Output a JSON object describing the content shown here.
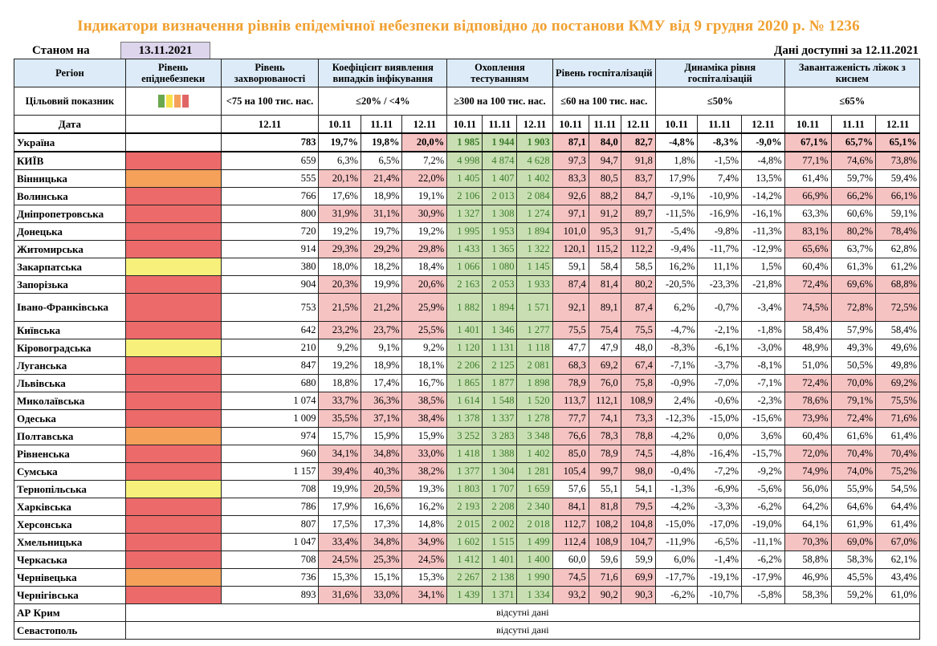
{
  "title": "Індикатори визначення рівнів епідемічної небезпеки відповідно до постанови КМУ від 9 грудня 2020 р. № 1236",
  "status_label": "Станом на",
  "status_date": "13.11.2021",
  "data_available": "Дані доступні за  12.11.2021",
  "headers": {
    "region": "Регіон",
    "level": "Рівень епіднебезпеки",
    "incidence": "Рівень захворюваності",
    "detection": "Коефіцієнт виявлення випадків інфікування",
    "testing": "Охоплення тестуванням",
    "hosp": "Рівень госпіталізацій",
    "dyn": "Динаміка рівня госпіталізацій",
    "beds": "Завантаженість ліжок з киснем"
  },
  "targets": {
    "label": "Цільовий показник",
    "incidence": "<75 на 100 тис. нас.",
    "detection": "≤20% / <4%",
    "testing": "≥300 на 100 тис. нас.",
    "hosp": "≤60 на 100 тис. нас.",
    "dyn": "≤50%",
    "beds": "≤65%",
    "swatches": [
      "#6aa84f",
      "#f7e14a",
      "#f5a15a",
      "#e06666"
    ]
  },
  "date_row": {
    "label": "Дата",
    "incidence": "12.11",
    "d1": "10.11",
    "d2": "11.11",
    "d3": "12.11"
  },
  "rows": [
    {
      "region": "Україна",
      "level": "",
      "inc": "783",
      "det": [
        "19,7%",
        "19,8%",
        "20,0%"
      ],
      "test": [
        "1 985",
        "1 944",
        "1 903"
      ],
      "hosp": [
        "87,1",
        "84,0",
        "82,7"
      ],
      "dyn": [
        "-4,8%",
        "-8,3%",
        "-9,0%"
      ],
      "beds": [
        "67,1%",
        "65,7%",
        "65,1%"
      ],
      "detR": [
        0,
        0,
        1
      ],
      "hospR": [
        1,
        1,
        1
      ],
      "bedsR": [
        1,
        1,
        1
      ]
    },
    {
      "region": "КИЇВ",
      "level": "red",
      "inc": "659",
      "det": [
        "6,3%",
        "6,5%",
        "7,2%"
      ],
      "test": [
        "4 998",
        "4 874",
        "4 628"
      ],
      "hosp": [
        "97,3",
        "94,7",
        "91,8"
      ],
      "dyn": [
        "1,8%",
        "-1,5%",
        "-4,8%"
      ],
      "beds": [
        "77,1%",
        "74,6%",
        "73,8%"
      ],
      "detR": [
        0,
        0,
        0
      ],
      "hospR": [
        1,
        1,
        1
      ],
      "bedsR": [
        1,
        1,
        1
      ]
    },
    {
      "region": "Вінницька",
      "level": "orange",
      "inc": "555",
      "det": [
        "20,1%",
        "21,4%",
        "22,0%"
      ],
      "test": [
        "1 405",
        "1 407",
        "1 402"
      ],
      "hosp": [
        "83,3",
        "80,5",
        "83,7"
      ],
      "dyn": [
        "17,9%",
        "7,4%",
        "13,5%"
      ],
      "beds": [
        "61,4%",
        "59,7%",
        "59,4%"
      ],
      "detR": [
        1,
        1,
        1
      ],
      "hospR": [
        1,
        1,
        1
      ],
      "bedsR": [
        0,
        0,
        0
      ]
    },
    {
      "region": "Волинська",
      "level": "red",
      "inc": "766",
      "det": [
        "17,6%",
        "18,9%",
        "19,1%"
      ],
      "test": [
        "2 106",
        "2 013",
        "2 084"
      ],
      "hosp": [
        "92,6",
        "88,2",
        "84,7"
      ],
      "dyn": [
        "-9,1%",
        "-10,9%",
        "-14,2%"
      ],
      "beds": [
        "66,9%",
        "66,2%",
        "66,1%"
      ],
      "detR": [
        0,
        0,
        0
      ],
      "hospR": [
        1,
        1,
        1
      ],
      "bedsR": [
        1,
        1,
        1
      ]
    },
    {
      "region": "Дніпропетровська",
      "level": "red",
      "inc": "800",
      "det": [
        "31,9%",
        "31,1%",
        "30,9%"
      ],
      "test": [
        "1 327",
        "1 308",
        "1 274"
      ],
      "hosp": [
        "97,1",
        "91,2",
        "89,7"
      ],
      "dyn": [
        "-11,5%",
        "-16,9%",
        "-16,1%"
      ],
      "beds": [
        "63,3%",
        "60,6%",
        "59,1%"
      ],
      "detR": [
        1,
        1,
        1
      ],
      "hospR": [
        1,
        1,
        1
      ],
      "bedsR": [
        0,
        0,
        0
      ]
    },
    {
      "region": "Донецька",
      "level": "red",
      "inc": "720",
      "det": [
        "19,2%",
        "19,7%",
        "19,2%"
      ],
      "test": [
        "1 995",
        "1 953",
        "1 894"
      ],
      "hosp": [
        "101,0",
        "95,3",
        "91,7"
      ],
      "dyn": [
        "-5,4%",
        "-9,8%",
        "-11,3%"
      ],
      "beds": [
        "83,1%",
        "80,2%",
        "78,4%"
      ],
      "detR": [
        0,
        0,
        0
      ],
      "hospR": [
        1,
        1,
        1
      ],
      "bedsR": [
        1,
        1,
        1
      ]
    },
    {
      "region": "Житомирська",
      "level": "red",
      "inc": "914",
      "det": [
        "29,3%",
        "29,2%",
        "29,8%"
      ],
      "test": [
        "1 433",
        "1 365",
        "1 322"
      ],
      "hosp": [
        "120,1",
        "115,2",
        "112,2"
      ],
      "dyn": [
        "-9,4%",
        "-11,7%",
        "-12,9%"
      ],
      "beds": [
        "65,6%",
        "63,7%",
        "62,8%"
      ],
      "detR": [
        1,
        1,
        1
      ],
      "hospR": [
        1,
        1,
        1
      ],
      "bedsR": [
        1,
        0,
        0
      ]
    },
    {
      "region": "Закарпатська",
      "level": "yellow",
      "inc": "380",
      "det": [
        "18,0%",
        "18,2%",
        "18,4%"
      ],
      "test": [
        "1 066",
        "1 080",
        "1 145"
      ],
      "hosp": [
        "59,1",
        "58,4",
        "58,5"
      ],
      "dyn": [
        "16,2%",
        "11,1%",
        "1,5%"
      ],
      "beds": [
        "60,4%",
        "61,3%",
        "61,2%"
      ],
      "detR": [
        0,
        0,
        0
      ],
      "hospR": [
        0,
        0,
        0
      ],
      "bedsR": [
        0,
        0,
        0
      ]
    },
    {
      "region": "Запорізька",
      "level": "red",
      "inc": "904",
      "det": [
        "20,3%",
        "19,9%",
        "20,6%"
      ],
      "test": [
        "2 163",
        "2 053",
        "1 933"
      ],
      "hosp": [
        "87,4",
        "81,4",
        "80,2"
      ],
      "dyn": [
        "-20,5%",
        "-23,3%",
        "-21,8%"
      ],
      "beds": [
        "72,4%",
        "69,6%",
        "68,8%"
      ],
      "detR": [
        1,
        0,
        1
      ],
      "hospR": [
        1,
        1,
        1
      ],
      "bedsR": [
        1,
        1,
        1
      ]
    },
    {
      "region": "Івано-Франківська",
      "level": "red",
      "inc": "753",
      "det": [
        "21,5%",
        "21,2%",
        "25,9%"
      ],
      "test": [
        "1 882",
        "1 894",
        "1 571"
      ],
      "hosp": [
        "92,1",
        "89,1",
        "87,4"
      ],
      "dyn": [
        "6,2%",
        "-0,7%",
        "-3,4%"
      ],
      "beds": [
        "74,5%",
        "72,8%",
        "72,5%"
      ],
      "detR": [
        1,
        1,
        1
      ],
      "hospR": [
        1,
        1,
        1
      ],
      "bedsR": [
        1,
        1,
        1
      ],
      "tall": true
    },
    {
      "region": "Київська",
      "level": "red",
      "inc": "642",
      "det": [
        "23,2%",
        "23,7%",
        "25,5%"
      ],
      "test": [
        "1 401",
        "1 346",
        "1 277"
      ],
      "hosp": [
        "75,5",
        "75,4",
        "75,5"
      ],
      "dyn": [
        "-4,7%",
        "-2,1%",
        "-1,8%"
      ],
      "beds": [
        "58,4%",
        "57,9%",
        "58,4%"
      ],
      "detR": [
        1,
        1,
        1
      ],
      "hospR": [
        1,
        1,
        1
      ],
      "bedsR": [
        0,
        0,
        0
      ]
    },
    {
      "region": "Кіровоградська",
      "level": "yellow",
      "inc": "210",
      "det": [
        "9,2%",
        "9,1%",
        "9,2%"
      ],
      "test": [
        "1 120",
        "1 131",
        "1 118"
      ],
      "hosp": [
        "47,7",
        "47,9",
        "48,0"
      ],
      "dyn": [
        "-8,3%",
        "-6,1%",
        "-3,0%"
      ],
      "beds": [
        "48,9%",
        "49,3%",
        "49,6%"
      ],
      "detR": [
        0,
        0,
        0
      ],
      "hospR": [
        0,
        0,
        0
      ],
      "bedsR": [
        0,
        0,
        0
      ]
    },
    {
      "region": "Луганська",
      "level": "red",
      "inc": "847",
      "det": [
        "19,2%",
        "18,9%",
        "18,1%"
      ],
      "test": [
        "2 206",
        "2 125",
        "2 081"
      ],
      "hosp": [
        "68,3",
        "69,2",
        "67,4"
      ],
      "dyn": [
        "-7,1%",
        "-3,7%",
        "-8,1%"
      ],
      "beds": [
        "51,0%",
        "50,5%",
        "49,8%"
      ],
      "detR": [
        0,
        0,
        0
      ],
      "hospR": [
        1,
        1,
        1
      ],
      "bedsR": [
        0,
        0,
        0
      ]
    },
    {
      "region": "Львівська",
      "level": "red",
      "inc": "680",
      "det": [
        "18,8%",
        "17,4%",
        "16,7%"
      ],
      "test": [
        "1 865",
        "1 877",
        "1 898"
      ],
      "hosp": [
        "78,9",
        "76,0",
        "75,8"
      ],
      "dyn": [
        "-0,9%",
        "-7,0%",
        "-7,1%"
      ],
      "beds": [
        "72,4%",
        "70,0%",
        "69,2%"
      ],
      "detR": [
        0,
        0,
        0
      ],
      "hospR": [
        1,
        1,
        1
      ],
      "bedsR": [
        1,
        1,
        1
      ]
    },
    {
      "region": "Миколаївська",
      "level": "red",
      "inc": "1 074",
      "det": [
        "33,7%",
        "36,3%",
        "38,5%"
      ],
      "test": [
        "1 614",
        "1 548",
        "1 520"
      ],
      "hosp": [
        "113,7",
        "112,1",
        "108,9"
      ],
      "dyn": [
        "2,4%",
        "-0,6%",
        "-2,3%"
      ],
      "beds": [
        "78,6%",
        "79,1%",
        "75,5%"
      ],
      "detR": [
        1,
        1,
        1
      ],
      "hospR": [
        1,
        1,
        1
      ],
      "bedsR": [
        1,
        1,
        1
      ]
    },
    {
      "region": "Одеська",
      "level": "red",
      "inc": "1 009",
      "det": [
        "35,5%",
        "37,1%",
        "38,4%"
      ],
      "test": [
        "1 378",
        "1 337",
        "1 278"
      ],
      "hosp": [
        "77,7",
        "74,1",
        "73,3"
      ],
      "dyn": [
        "-12,3%",
        "-15,0%",
        "-15,6%"
      ],
      "beds": [
        "73,9%",
        "72,4%",
        "71,6%"
      ],
      "detR": [
        1,
        1,
        1
      ],
      "hospR": [
        1,
        1,
        1
      ],
      "bedsR": [
        1,
        1,
        1
      ]
    },
    {
      "region": "Полтавська",
      "level": "orange",
      "inc": "974",
      "det": [
        "15,7%",
        "15,9%",
        "15,9%"
      ],
      "test": [
        "3 252",
        "3 283",
        "3 348"
      ],
      "hosp": [
        "76,6",
        "78,3",
        "78,8"
      ],
      "dyn": [
        "-4,2%",
        "0,0%",
        "3,6%"
      ],
      "beds": [
        "60,4%",
        "61,6%",
        "61,4%"
      ],
      "detR": [
        0,
        0,
        0
      ],
      "hospR": [
        1,
        1,
        1
      ],
      "bedsR": [
        0,
        0,
        0
      ]
    },
    {
      "region": "Рівненська",
      "level": "red",
      "inc": "960",
      "det": [
        "34,1%",
        "34,8%",
        "33,0%"
      ],
      "test": [
        "1 418",
        "1 388",
        "1 402"
      ],
      "hosp": [
        "85,0",
        "78,9",
        "74,5"
      ],
      "dyn": [
        "-4,8%",
        "-16,4%",
        "-15,7%"
      ],
      "beds": [
        "72,0%",
        "70,4%",
        "70,4%"
      ],
      "detR": [
        1,
        1,
        1
      ],
      "hospR": [
        1,
        1,
        1
      ],
      "bedsR": [
        1,
        1,
        1
      ]
    },
    {
      "region": "Сумська",
      "level": "red",
      "inc": "1 157",
      "det": [
        "39,4%",
        "40,3%",
        "38,2%"
      ],
      "test": [
        "1 377",
        "1 304",
        "1 281"
      ],
      "hosp": [
        "105,4",
        "99,7",
        "98,0"
      ],
      "dyn": [
        "-0,4%",
        "-7,2%",
        "-9,2%"
      ],
      "beds": [
        "74,9%",
        "74,0%",
        "75,2%"
      ],
      "detR": [
        1,
        1,
        1
      ],
      "hospR": [
        1,
        1,
        1
      ],
      "bedsR": [
        1,
        1,
        1
      ]
    },
    {
      "region": "Тернопільська",
      "level": "yellow",
      "inc": "708",
      "det": [
        "19,9%",
        "20,5%",
        "19,3%"
      ],
      "test": [
        "1 803",
        "1 707",
        "1 659"
      ],
      "hosp": [
        "57,6",
        "55,1",
        "54,1"
      ],
      "dyn": [
        "-1,3%",
        "-6,9%",
        "-5,6%"
      ],
      "beds": [
        "56,0%",
        "55,9%",
        "54,5%"
      ],
      "detR": [
        0,
        1,
        0
      ],
      "hospR": [
        0,
        0,
        0
      ],
      "bedsR": [
        0,
        0,
        0
      ]
    },
    {
      "region": "Харківська",
      "level": "red",
      "inc": "786",
      "det": [
        "17,9%",
        "16,6%",
        "16,2%"
      ],
      "test": [
        "2 193",
        "2 208",
        "2 340"
      ],
      "hosp": [
        "84,1",
        "81,8",
        "79,5"
      ],
      "dyn": [
        "-4,2%",
        "-3,3%",
        "-6,2%"
      ],
      "beds": [
        "64,2%",
        "64,6%",
        "64,4%"
      ],
      "detR": [
        0,
        0,
        0
      ],
      "hospR": [
        1,
        1,
        1
      ],
      "bedsR": [
        0,
        0,
        0
      ]
    },
    {
      "region": "Херсонська",
      "level": "red",
      "inc": "807",
      "det": [
        "17,5%",
        "17,3%",
        "14,8%"
      ],
      "test": [
        "2 015",
        "2 002",
        "2 018"
      ],
      "hosp": [
        "112,7",
        "108,2",
        "104,8"
      ],
      "dyn": [
        "-15,0%",
        "-17,0%",
        "-19,0%"
      ],
      "beds": [
        "64,1%",
        "61,9%",
        "61,4%"
      ],
      "detR": [
        0,
        0,
        0
      ],
      "hospR": [
        1,
        1,
        1
      ],
      "bedsR": [
        0,
        0,
        0
      ]
    },
    {
      "region": "Хмельницька",
      "level": "red",
      "inc": "1 047",
      "det": [
        "33,4%",
        "34,8%",
        "34,9%"
      ],
      "test": [
        "1 602",
        "1 515",
        "1 499"
      ],
      "hosp": [
        "112,4",
        "108,9",
        "104,7"
      ],
      "dyn": [
        "-11,9%",
        "-6,5%",
        "-11,1%"
      ],
      "beds": [
        "70,3%",
        "69,0%",
        "67,0%"
      ],
      "detR": [
        1,
        1,
        1
      ],
      "hospR": [
        1,
        1,
        1
      ],
      "bedsR": [
        1,
        1,
        1
      ]
    },
    {
      "region": "Черкаська",
      "level": "red",
      "inc": "708",
      "det": [
        "24,5%",
        "25,3%",
        "24,5%"
      ],
      "test": [
        "1 412",
        "1 401",
        "1 400"
      ],
      "hosp": [
        "60,0",
        "59,6",
        "59,9"
      ],
      "dyn": [
        "6,0%",
        "-1,4%",
        "-6,2%"
      ],
      "beds": [
        "58,8%",
        "58,3%",
        "62,1%"
      ],
      "detR": [
        1,
        1,
        1
      ],
      "hospR": [
        0,
        0,
        0
      ],
      "bedsR": [
        0,
        0,
        0
      ]
    },
    {
      "region": "Чернівецька",
      "level": "orange",
      "inc": "736",
      "det": [
        "15,3%",
        "15,1%",
        "15,3%"
      ],
      "test": [
        "2 267",
        "2 138",
        "1 990"
      ],
      "hosp": [
        "74,5",
        "71,6",
        "69,9"
      ],
      "dyn": [
        "-17,7%",
        "-19,1%",
        "-17,9%"
      ],
      "beds": [
        "46,9%",
        "45,5%",
        "43,4%"
      ],
      "detR": [
        0,
        0,
        0
      ],
      "hospR": [
        1,
        1,
        1
      ],
      "bedsR": [
        0,
        0,
        0
      ]
    },
    {
      "region": "Чернігівська",
      "level": "red",
      "inc": "893",
      "det": [
        "31,6%",
        "33,0%",
        "34,1%"
      ],
      "test": [
        "1 439",
        "1 371",
        "1 334"
      ],
      "hosp": [
        "93,2",
        "90,2",
        "90,3"
      ],
      "dyn": [
        "-6,2%",
        "-10,7%",
        "-5,8%"
      ],
      "beds": [
        "58,3%",
        "59,2%",
        "61,0%"
      ],
      "detR": [
        1,
        1,
        1
      ],
      "hospR": [
        1,
        1,
        1
      ],
      "bedsR": [
        0,
        0,
        0
      ]
    }
  ],
  "missing": [
    {
      "region": "АР Крим",
      "text": "відсутні дані"
    },
    {
      "region": "Севастополь",
      "text": "відсутні дані"
    }
  ]
}
